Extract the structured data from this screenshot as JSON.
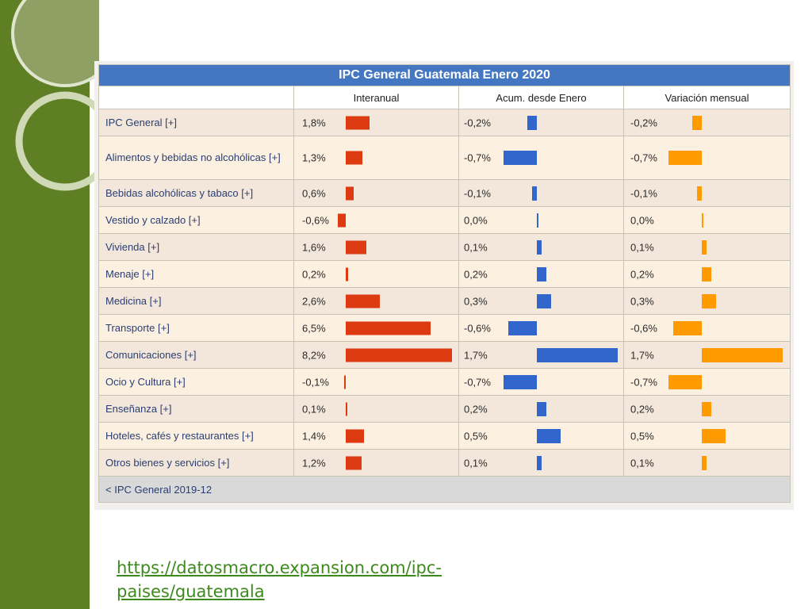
{
  "colors": {
    "sidebar": "#5e7f24",
    "header_bg": "#4477c2",
    "interanual": "#de3a12",
    "acumulado": "#3366cc",
    "mensual": "#ff9b00"
  },
  "chart_data": {
    "type": "table",
    "title": "IPC General Guatemala Enero 2020",
    "columns": [
      "Interanual",
      "Acum. desde Enero",
      "Variación mensual"
    ],
    "rows": [
      {
        "category": "IPC General [+]",
        "values": [
          1.8,
          -0.2,
          -0.2
        ],
        "labels": [
          "1,8%",
          "-0,2%",
          "-0,2%"
        ]
      },
      {
        "category": "Alimentos y bebidas no alcohólicas [+]",
        "values": [
          1.3,
          -0.7,
          -0.7
        ],
        "labels": [
          "1,3%",
          "-0,7%",
          "-0,7%"
        ]
      },
      {
        "category": "Bebidas alcohólicas y tabaco [+]",
        "values": [
          0.6,
          -0.1,
          -0.1
        ],
        "labels": [
          "0,6%",
          "-0,1%",
          "-0,1%"
        ]
      },
      {
        "category": "Vestido y calzado [+]",
        "values": [
          -0.6,
          0.0,
          0.0
        ],
        "labels": [
          "-0,6%",
          "0,0%",
          "0,0%"
        ]
      },
      {
        "category": "Vivienda [+]",
        "values": [
          1.6,
          0.1,
          0.1
        ],
        "labels": [
          "1,6%",
          "0,1%",
          "0,1%"
        ]
      },
      {
        "category": "Menaje [+]",
        "values": [
          0.2,
          0.2,
          0.2
        ],
        "labels": [
          "0,2%",
          "0,2%",
          "0,2%"
        ]
      },
      {
        "category": "Medicina [+]",
        "values": [
          2.6,
          0.3,
          0.3
        ],
        "labels": [
          "2,6%",
          "0,3%",
          "0,3%"
        ]
      },
      {
        "category": "Transporte [+]",
        "values": [
          6.5,
          -0.6,
          -0.6
        ],
        "labels": [
          "6,5%",
          "-0,6%",
          "-0,6%"
        ]
      },
      {
        "category": "Comunicaciones [+]",
        "values": [
          8.2,
          1.7,
          1.7
        ],
        "labels": [
          "8,2%",
          "1,7%",
          "1,7%"
        ]
      },
      {
        "category": "Ocio y Cultura [+]",
        "values": [
          -0.1,
          -0.7,
          -0.7
        ],
        "labels": [
          "-0,1%",
          "-0,7%",
          "-0,7%"
        ]
      },
      {
        "category": "Enseñanza [+]",
        "values": [
          0.1,
          0.2,
          0.2
        ],
        "labels": [
          "0,1%",
          "0,2%",
          "0,2%"
        ]
      },
      {
        "category": "Hoteles, cafés y restaurantes [+]",
        "values": [
          1.4,
          0.5,
          0.5
        ],
        "labels": [
          "1,4%",
          "0,5%",
          "0,5%"
        ]
      },
      {
        "category": "Otros bienes y servicios [+]",
        "values": [
          1.2,
          0.1,
          0.1
        ],
        "labels": [
          "1,2%",
          "0,1%",
          "0,1%"
        ]
      }
    ],
    "footer_link": "< IPC General 2019-12"
  },
  "source_url": "https://datosmacro.expansion.com/ipc-paises/guatemala"
}
